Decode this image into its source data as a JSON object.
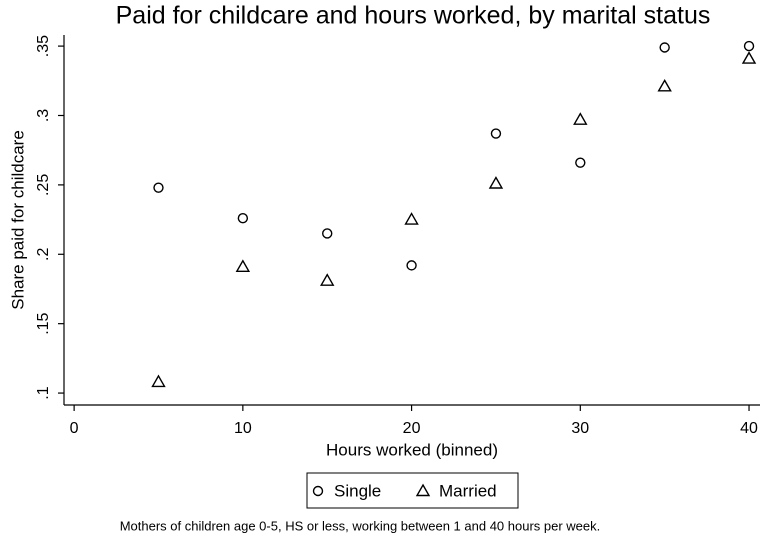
{
  "chart_data": {
    "type": "scatter",
    "title": "Paid for childcare and hours worked, by marital status",
    "x_label": "Hours worked (binned)",
    "y_label": "Share paid for childcare",
    "note": "Mothers of children age 0-5, HS or less, working between 1 and 40 hours per week.",
    "x": [
      5,
      10,
      15,
      20,
      25,
      30,
      35,
      40
    ],
    "series": [
      {
        "name": "Single",
        "marker": "circle",
        "color": "#000000",
        "values": [
          0.248,
          0.226,
          0.215,
          0.192,
          0.287,
          0.266,
          0.349,
          0.35
        ]
      },
      {
        "name": "Married",
        "marker": "triangle",
        "color": "#000000",
        "values": [
          0.108,
          0.191,
          0.181,
          0.225,
          0.251,
          0.297,
          0.321,
          0.341
        ]
      }
    ],
    "xlim": [
      -0.6,
      40.65
    ],
    "xticks": [
      0,
      10,
      20,
      30,
      40
    ],
    "ylim": [
      0.0914,
      0.358
    ],
    "yticks": [
      {
        "value": 0.1,
        "label": ".1"
      },
      {
        "value": 0.15,
        "label": ".15"
      },
      {
        "value": 0.2,
        "label": ".2"
      },
      {
        "value": 0.25,
        "label": ".25"
      },
      {
        "value": 0.3,
        "label": ".3"
      },
      {
        "value": 0.35,
        "label": ".35"
      }
    ],
    "grid": false,
    "legend": "bottom"
  }
}
